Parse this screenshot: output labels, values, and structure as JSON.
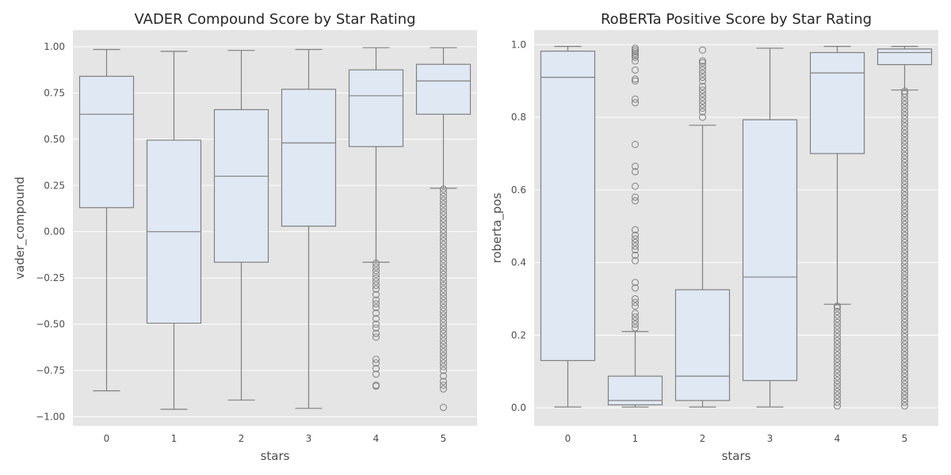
{
  "chart_data": [
    {
      "type": "box",
      "title": "VADER Compound Score by Star Rating",
      "xlabel": "stars",
      "ylabel": "vader_compound",
      "categories": [
        "0",
        "1",
        "2",
        "3",
        "4",
        "5"
      ],
      "ylim": [
        -1.05,
        1.09
      ],
      "yticks": [
        -1.0,
        -0.75,
        -0.5,
        -0.25,
        0.0,
        0.25,
        0.5,
        0.75,
        1.0
      ],
      "ytick_labels": [
        "−1.00",
        "−0.75",
        "−0.50",
        "−0.25",
        "0.00",
        "0.25",
        "0.50",
        "0.75",
        "1.00"
      ],
      "grid": true,
      "boxes": [
        {
          "category": "0",
          "whisker_low": -0.86,
          "q1": 0.13,
          "median": 0.635,
          "q3": 0.84,
          "whisker_high": 0.985,
          "outliers": []
        },
        {
          "category": "1",
          "whisker_low": -0.96,
          "q1": -0.495,
          "median": 0.0,
          "q3": 0.495,
          "whisker_high": 0.975,
          "outliers": []
        },
        {
          "category": "2",
          "whisker_low": -0.91,
          "q1": -0.165,
          "median": 0.3,
          "q3": 0.66,
          "whisker_high": 0.98,
          "outliers": []
        },
        {
          "category": "3",
          "whisker_low": -0.955,
          "q1": 0.03,
          "median": 0.48,
          "q3": 0.77,
          "whisker_high": 0.985,
          "outliers": []
        },
        {
          "category": "4",
          "whisker_low": -0.165,
          "q1": 0.46,
          "median": 0.735,
          "q3": 0.875,
          "whisker_high": 0.995,
          "outliers": [
            -0.17,
            -0.19,
            -0.21,
            -0.23,
            -0.25,
            -0.27,
            -0.29,
            -0.31,
            -0.34,
            -0.37,
            -0.39,
            -0.41,
            -0.44,
            -0.47,
            -0.5,
            -0.52,
            -0.55,
            -0.57,
            -0.69,
            -0.71,
            -0.74,
            -0.77,
            -0.83,
            -0.835
          ]
        },
        {
          "category": "5",
          "whisker_low": 0.235,
          "q1": 0.635,
          "median": 0.815,
          "q3": 0.905,
          "whisker_high": 0.995,
          "outliers": [
            0.23,
            0.21,
            0.19,
            0.17,
            0.15,
            0.13,
            0.11,
            0.09,
            0.07,
            0.05,
            0.03,
            0.01,
            -0.01,
            -0.03,
            -0.05,
            -0.07,
            -0.09,
            -0.11,
            -0.13,
            -0.15,
            -0.17,
            -0.19,
            -0.21,
            -0.23,
            -0.25,
            -0.27,
            -0.29,
            -0.31,
            -0.33,
            -0.35,
            -0.37,
            -0.39,
            -0.41,
            -0.43,
            -0.45,
            -0.47,
            -0.49,
            -0.51,
            -0.53,
            -0.55,
            -0.57,
            -0.59,
            -0.61,
            -0.63,
            -0.65,
            -0.67,
            -0.69,
            -0.71,
            -0.73,
            -0.75,
            -0.78,
            -0.81,
            -0.83,
            -0.85,
            -0.95
          ]
        }
      ]
    },
    {
      "type": "box",
      "title": "RoBERTa Positive Score by Star Rating",
      "xlabel": "stars",
      "ylabel": "roberta_pos",
      "categories": [
        "0",
        "1",
        "2",
        "3",
        "4",
        "5"
      ],
      "ylim": [
        -0.05,
        1.04
      ],
      "yticks": [
        0.0,
        0.2,
        0.4,
        0.6,
        0.8,
        1.0
      ],
      "ytick_labels": [
        "0.0",
        "0.2",
        "0.4",
        "0.6",
        "0.8",
        "1.0"
      ],
      "grid": true,
      "boxes": [
        {
          "category": "0",
          "whisker_low": 0.002,
          "q1": 0.13,
          "median": 0.91,
          "q3": 0.982,
          "whisker_high": 0.995,
          "outliers": []
        },
        {
          "category": "1",
          "whisker_low": 0.002,
          "q1": 0.008,
          "median": 0.02,
          "q3": 0.087,
          "whisker_high": 0.21,
          "outliers": [
            0.22,
            0.23,
            0.24,
            0.25,
            0.26,
            0.28,
            0.29,
            0.3,
            0.33,
            0.345,
            0.405,
            0.42,
            0.435,
            0.445,
            0.455,
            0.465,
            0.475,
            0.49,
            0.57,
            0.58,
            0.61,
            0.65,
            0.665,
            0.725,
            0.84,
            0.85,
            0.9,
            0.905,
            0.93,
            0.955,
            0.965,
            0.97,
            0.975,
            0.98,
            0.985,
            0.99
          ]
        },
        {
          "category": "2",
          "whisker_low": 0.002,
          "q1": 0.02,
          "median": 0.087,
          "q3": 0.325,
          "whisker_high": 0.778,
          "outliers": [
            0.8,
            0.815,
            0.825,
            0.835,
            0.845,
            0.855,
            0.865,
            0.875,
            0.885,
            0.9,
            0.91,
            0.92,
            0.93,
            0.94,
            0.95,
            0.955,
            0.985
          ]
        },
        {
          "category": "3",
          "whisker_low": 0.002,
          "q1": 0.075,
          "median": 0.36,
          "q3": 0.793,
          "whisker_high": 0.99,
          "outliers": []
        },
        {
          "category": "4",
          "whisker_low": 0.285,
          "q1": 0.7,
          "median": 0.922,
          "q3": 0.978,
          "whisker_high": 0.995,
          "outliers": [
            0.005,
            0.015,
            0.025,
            0.035,
            0.045,
            0.055,
            0.065,
            0.075,
            0.085,
            0.095,
            0.105,
            0.115,
            0.125,
            0.135,
            0.145,
            0.155,
            0.165,
            0.175,
            0.185,
            0.195,
            0.205,
            0.215,
            0.225,
            0.235,
            0.245,
            0.255,
            0.265,
            0.275,
            0.28
          ]
        },
        {
          "category": "5",
          "whisker_low": 0.875,
          "q1": 0.945,
          "median": 0.978,
          "q3": 0.988,
          "whisker_high": 0.995,
          "outliers": [
            0.005,
            0.015,
            0.025,
            0.035,
            0.045,
            0.055,
            0.065,
            0.075,
            0.085,
            0.095,
            0.105,
            0.115,
            0.125,
            0.135,
            0.145,
            0.155,
            0.165,
            0.175,
            0.185,
            0.195,
            0.205,
            0.215,
            0.225,
            0.235,
            0.245,
            0.255,
            0.265,
            0.275,
            0.285,
            0.295,
            0.305,
            0.315,
            0.325,
            0.335,
            0.345,
            0.355,
            0.365,
            0.375,
            0.385,
            0.395,
            0.405,
            0.415,
            0.425,
            0.435,
            0.445,
            0.455,
            0.465,
            0.475,
            0.485,
            0.495,
            0.505,
            0.515,
            0.525,
            0.535,
            0.545,
            0.555,
            0.565,
            0.575,
            0.585,
            0.595,
            0.605,
            0.615,
            0.625,
            0.635,
            0.645,
            0.655,
            0.665,
            0.675,
            0.685,
            0.695,
            0.705,
            0.715,
            0.725,
            0.735,
            0.745,
            0.755,
            0.765,
            0.775,
            0.785,
            0.795,
            0.805,
            0.815,
            0.825,
            0.835,
            0.845,
            0.855,
            0.865,
            0.872
          ]
        }
      ]
    }
  ],
  "colors": {
    "figure_background": "#ffffff",
    "plot_background": "#e5e5e5",
    "grid": "#ffffff",
    "box_fill": "#dfe8f3",
    "box_stroke": "#808080",
    "text": "#262626",
    "label_text": "#4d4d4d"
  }
}
